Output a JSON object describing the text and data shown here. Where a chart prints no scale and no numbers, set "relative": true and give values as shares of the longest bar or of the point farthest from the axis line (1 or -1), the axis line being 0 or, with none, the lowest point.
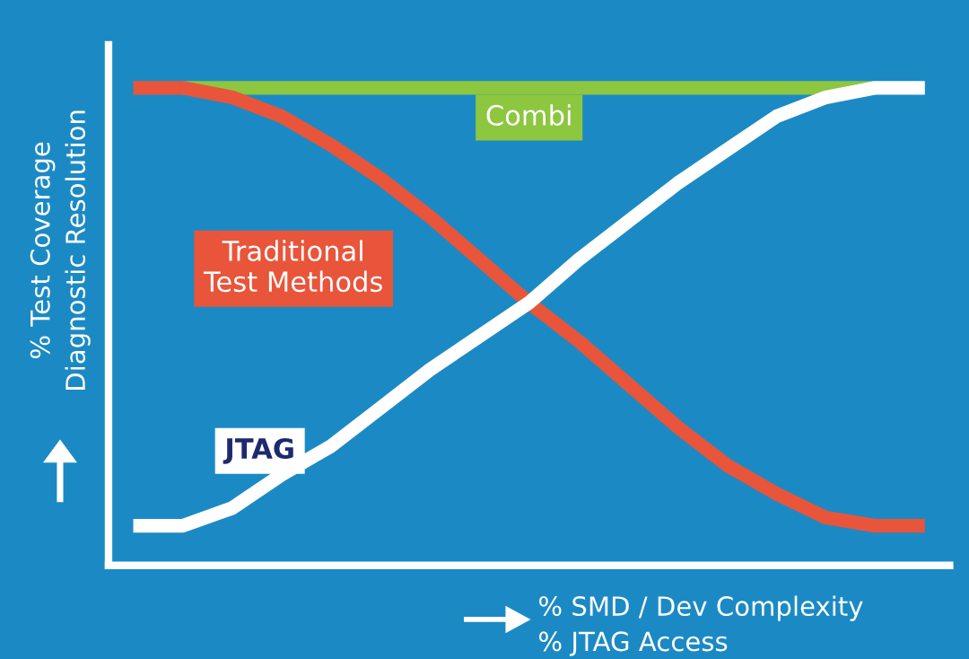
{
  "chart_data": {
    "type": "line",
    "relative": true,
    "xlabel": "% SMD / Dev Complexity\n% JTAG Access",
    "ylabel": "% Test Coverage\nDiagnostic Resolution",
    "categories": [
      null,
      null,
      null,
      null,
      null,
      null,
      null,
      null,
      null,
      null,
      null,
      null,
      null,
      null,
      null,
      null,
      null
    ],
    "series": [
      {
        "name": "Combi",
        "color": "#8dc63f",
        "values": [
          null,
          1,
          1,
          1,
          1,
          1,
          1,
          1,
          1,
          1,
          1,
          1,
          1,
          1,
          1,
          1,
          null
        ]
      },
      {
        "name": "Traditional\nTest Methods",
        "color": "#e8553a",
        "values": [
          1,
          1,
          0.98,
          0.94,
          0.88,
          0.81,
          0.73,
          0.64,
          0.55,
          0.47,
          0.38,
          0.29,
          0.21,
          0.15,
          0.1,
          0.083,
          0.083
        ]
      },
      {
        "name": "JTAG",
        "color": "#ffffff",
        "values": [
          0.083,
          0.083,
          0.12,
          0.19,
          0.25,
          0.33,
          0.41,
          0.48,
          0.55,
          0.64,
          0.72,
          0.8,
          0.87,
          0.94,
          0.98,
          1,
          1
        ]
      }
    ],
    "grid": false,
    "legend": false,
    "marker": "none",
    "line_style": "solid"
  }
}
